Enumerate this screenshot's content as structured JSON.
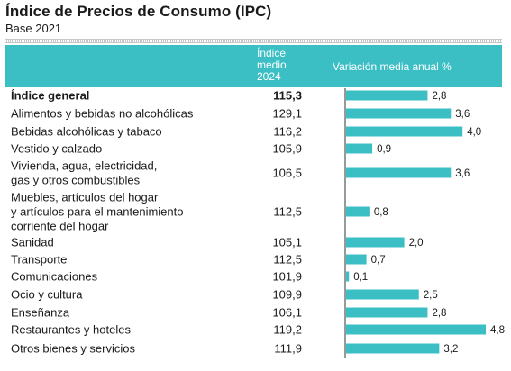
{
  "title": "Índice de Precios de Consumo (IPC)",
  "subtitle": "Base 2021",
  "header": {
    "index_col": "Índice\nmedio\n2024",
    "variation_col": "Variación media anual %"
  },
  "colors": {
    "header_bg": "#3bbfc4",
    "bar": "#3bbfc4",
    "axis": "#333333"
  },
  "chart_data": {
    "type": "bar",
    "orientation": "horizontal",
    "categories": [
      [
        "Índice general"
      ],
      [
        "Alimentos y bebidas no alcohólicas"
      ],
      [
        "Bebidas alcohólicas y tabaco"
      ],
      [
        "Vestido y calzado"
      ],
      [
        "Vivienda, agua, electricidad,",
        "gas y otros combustibles"
      ],
      [
        "Muebles, artículos del hogar",
        "y artículos para el mantenimiento",
        "corriente del hogar"
      ],
      [
        "Sanidad"
      ],
      [
        "Transporte"
      ],
      [
        "Comunicaciones"
      ],
      [
        "Ocio y cultura"
      ],
      [
        "Enseñanza"
      ],
      [
        "Restaurantes y hoteles"
      ],
      [
        "Otros bienes y servicios"
      ]
    ],
    "index_values": [
      "115,3",
      "129,1",
      "116,2",
      "105,9",
      "106,5",
      "112,5",
      "105,1",
      "112,5",
      "101,9",
      "109,9",
      "106,1",
      "119,2",
      "111,9"
    ],
    "values": [
      2.8,
      3.6,
      4.0,
      0.9,
      3.6,
      0.8,
      2.0,
      0.7,
      0.1,
      2.5,
      2.8,
      4.8,
      3.2
    ],
    "value_labels": [
      "2,8",
      "3,6",
      "4,0",
      "0,9",
      "3,6",
      "0,8",
      "2,0",
      "0,7",
      "0,1",
      "2,5",
      "2,8",
      "4,8",
      "3,2"
    ],
    "bold_rows": [
      0
    ],
    "xlim": [
      0,
      5
    ]
  }
}
